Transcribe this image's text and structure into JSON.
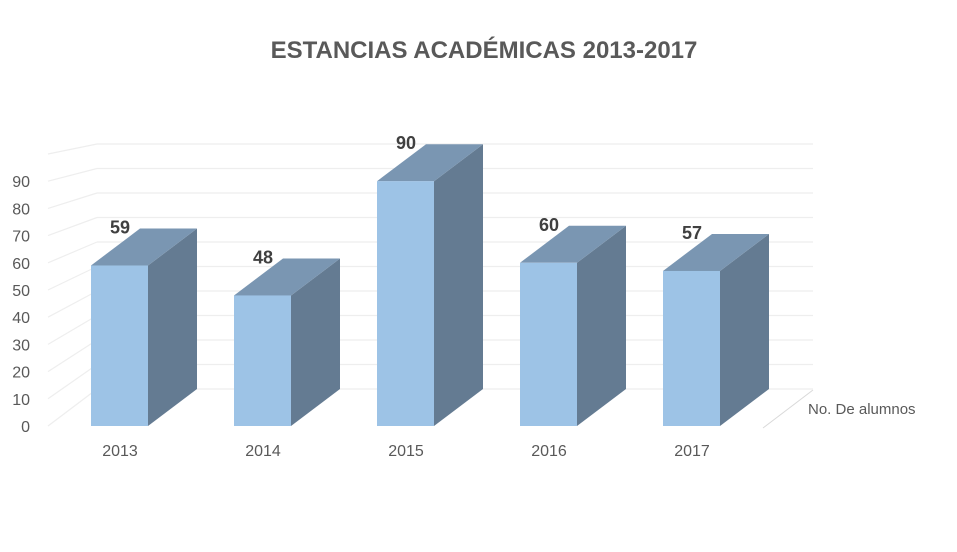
{
  "chart_data": {
    "type": "bar",
    "style": "3d-column",
    "title": "ESTANCIAS ACADÉMICAS 2013-2017",
    "categories": [
      "2013",
      "2014",
      "2015",
      "2016",
      "2017"
    ],
    "series": [
      {
        "name": "No. De alumnos",
        "values": [
          59,
          48,
          90,
          60,
          57
        ]
      }
    ],
    "y_ticks": [
      "0",
      "10",
      "20",
      "30",
      "40",
      "50",
      "60",
      "70",
      "80",
      "90"
    ],
    "ylim": [
      0,
      100
    ],
    "grid": true,
    "data_labels": true,
    "legend": "right",
    "colors": {
      "front": "#9dc3e6",
      "top": "#7a96b2",
      "side": "#647b92",
      "grid": "#eeeeee",
      "title": "#595959",
      "text": "#595959"
    }
  }
}
